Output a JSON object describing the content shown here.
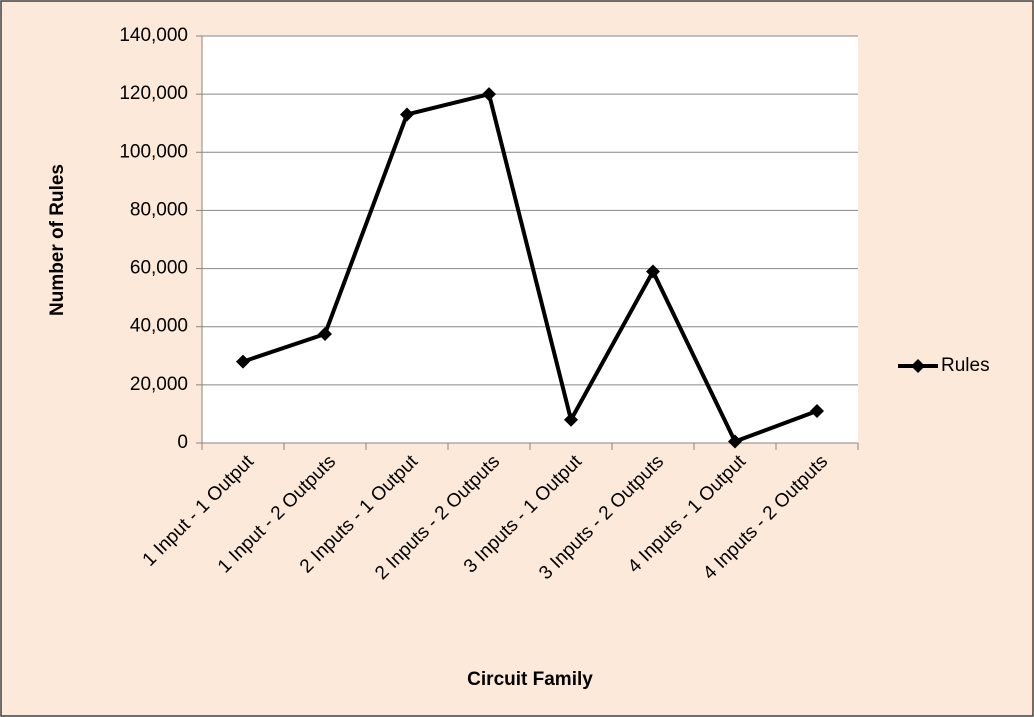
{
  "chart_data": {
    "type": "line",
    "x_label": "Circuit Family",
    "y_label": "Number of Rules",
    "categories": [
      "1 Input - 1 Output",
      "1 Input - 2 Outputs",
      "2 Inputs - 1 Output",
      "2 Inputs - 2 Outputs",
      "3 Inputs - 1 Output",
      "3 Inputs - 2 Outputs",
      "4 Inputs - 1 Output",
      "4 Inputs - 2 Outputs"
    ],
    "series": [
      {
        "name": "Rules",
        "color": "#000000",
        "marker": "diamond",
        "values": [
          28000,
          37500,
          113000,
          120000,
          8000,
          59000,
          500,
          11000
        ]
      }
    ],
    "ylim": [
      0,
      140000
    ],
    "yticks": [
      0,
      {
        "value": 20000,
        "label": "20,000"
      },
      {
        "value": 40000,
        "label": "40,000"
      },
      {
        "value": 60000,
        "label": "60,000"
      },
      {
        "value": 80000,
        "label": "80,000"
      },
      {
        "value": 100000,
        "label": "100,000"
      },
      {
        "value": 120000,
        "label": "120,000"
      },
      {
        "value": 140000,
        "label": "140,000"
      }
    ],
    "grid": true,
    "legend": "right"
  }
}
